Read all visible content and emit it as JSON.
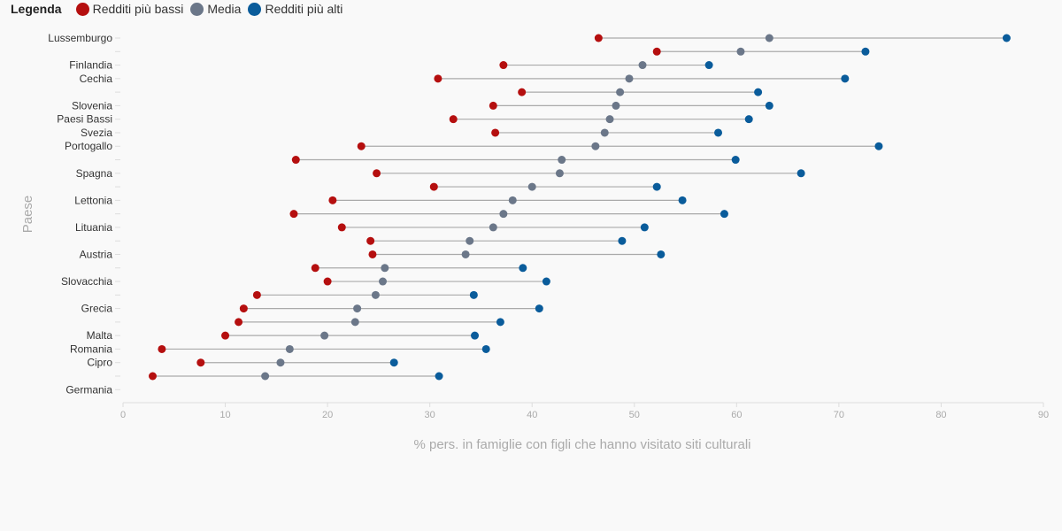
{
  "legend": {
    "title": "Legenda",
    "items": [
      {
        "label": "Redditi più bassi",
        "color": "#b50f0f"
      },
      {
        "label": "Media",
        "color": "#6b7789"
      },
      {
        "label": "Redditi più alti",
        "color": "#0a5c9b"
      }
    ]
  },
  "chart_data": {
    "type": "dot-range",
    "xlabel": "% pers. in famiglie con figli che hanno visitato siti culturali",
    "ylabel": "Paese",
    "xlim": [
      0,
      90
    ],
    "xticks": [
      0,
      10,
      20,
      30,
      40,
      50,
      60,
      70,
      80,
      90
    ],
    "grid": false,
    "legend_position": "top-left",
    "series_names": [
      "Redditi più bassi",
      "Media",
      "Redditi più alti"
    ],
    "rows": [
      {
        "label": "Lussemburgo",
        "low": 46.5,
        "mean": 63.2,
        "high": 86.4
      },
      {
        "label": "",
        "low": 52.2,
        "mean": 60.4,
        "high": 72.6
      },
      {
        "label": "Finlandia",
        "low": 37.2,
        "mean": 50.8,
        "high": 57.3
      },
      {
        "label": "Cechia",
        "low": 30.8,
        "mean": 49.5,
        "high": 70.6
      },
      {
        "label": "",
        "low": 39.0,
        "mean": 48.6,
        "high": 62.1
      },
      {
        "label": "Slovenia",
        "low": 36.2,
        "mean": 48.2,
        "high": 63.2
      },
      {
        "label": "Paesi Bassi",
        "low": 32.3,
        "mean": 47.6,
        "high": 61.2
      },
      {
        "label": "Svezia",
        "low": 36.4,
        "mean": 47.1,
        "high": 58.2
      },
      {
        "label": "Portogallo",
        "low": 23.3,
        "mean": 46.2,
        "high": 73.9
      },
      {
        "label": "",
        "low": 16.9,
        "mean": 42.9,
        "high": 59.9
      },
      {
        "label": "Spagna",
        "low": 24.8,
        "mean": 42.7,
        "high": 66.3
      },
      {
        "label": "",
        "low": 30.4,
        "mean": 40.0,
        "high": 52.2
      },
      {
        "label": "Lettonia",
        "low": 20.5,
        "mean": 38.1,
        "high": 54.7
      },
      {
        "label": "",
        "low": 16.7,
        "mean": 37.2,
        "high": 58.8
      },
      {
        "label": "Lituania",
        "low": 21.4,
        "mean": 36.2,
        "high": 51.0
      },
      {
        "label": "",
        "low": 24.2,
        "mean": 33.9,
        "high": 48.8
      },
      {
        "label": "Austria",
        "low": 24.4,
        "mean": 33.5,
        "high": 52.6
      },
      {
        "label": "",
        "low": 18.8,
        "mean": 25.6,
        "high": 39.1
      },
      {
        "label": "Slovacchia",
        "low": 20.0,
        "mean": 25.4,
        "high": 41.4
      },
      {
        "label": "",
        "low": 13.1,
        "mean": 24.7,
        "high": 34.3
      },
      {
        "label": "Grecia",
        "low": 11.8,
        "mean": 22.9,
        "high": 40.7
      },
      {
        "label": "",
        "low": 11.3,
        "mean": 22.7,
        "high": 36.9
      },
      {
        "label": "Malta",
        "low": 10.0,
        "mean": 19.7,
        "high": 34.4
      },
      {
        "label": "Romania",
        "low": 3.8,
        "mean": 16.3,
        "high": 35.5
      },
      {
        "label": "Cipro",
        "low": 7.6,
        "mean": 15.4,
        "high": 26.5
      },
      {
        "label": "",
        "low": 2.9,
        "mean": 13.9,
        "high": 30.9
      },
      {
        "label": "Germania",
        "low": null,
        "mean": null,
        "high": null
      }
    ]
  }
}
